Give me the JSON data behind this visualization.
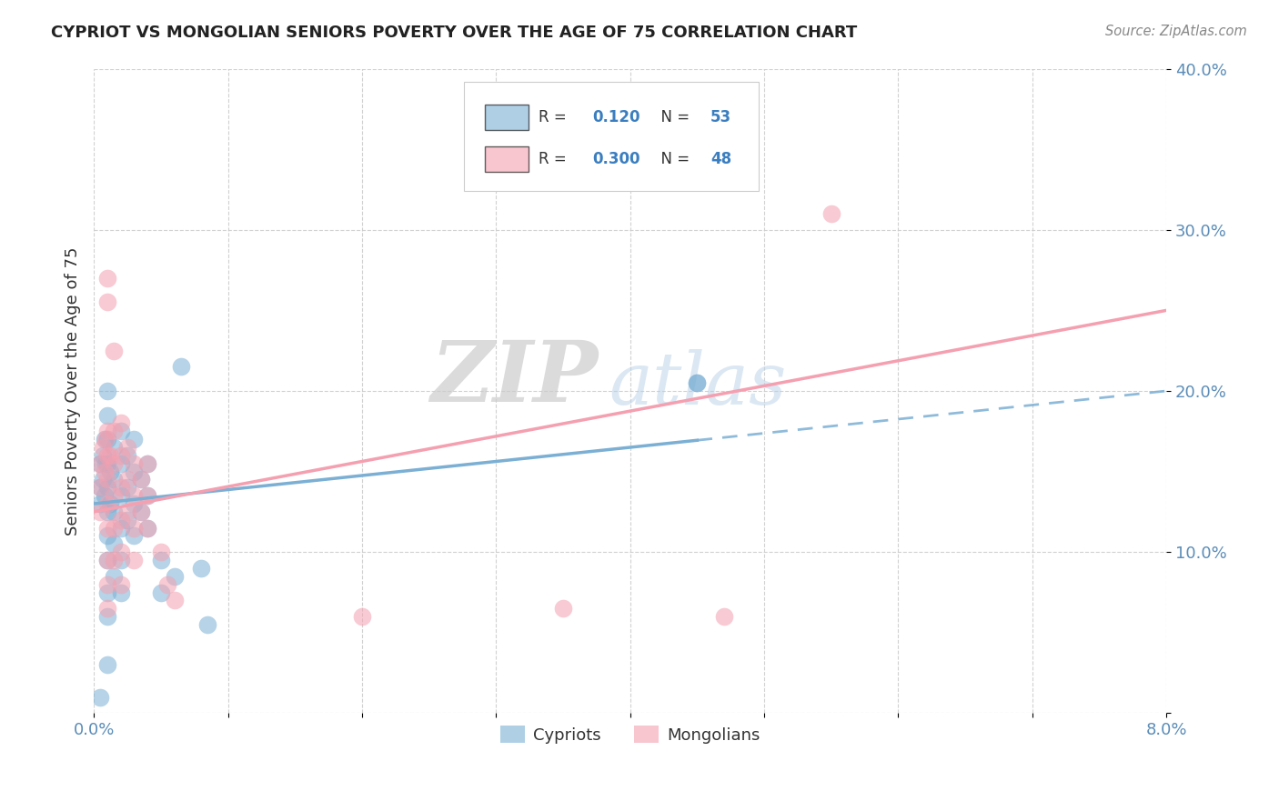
{
  "title": "CYPRIOT VS MONGOLIAN SENIORS POVERTY OVER THE AGE OF 75 CORRELATION CHART",
  "source_text": "Source: ZipAtlas.com",
  "ylabel": "Seniors Poverty Over the Age of 75",
  "xlim": [
    0.0,
    0.08
  ],
  "ylim": [
    0.0,
    0.4
  ],
  "xticks": [
    0.0,
    0.01,
    0.02,
    0.03,
    0.04,
    0.05,
    0.06,
    0.07,
    0.08
  ],
  "xticklabels": [
    "0.0%",
    "",
    "",
    "",
    "",
    "",
    "",
    "",
    "8.0%"
  ],
  "yticks": [
    0.0,
    0.1,
    0.2,
    0.3,
    0.4
  ],
  "yticklabels": [
    "",
    "10.0%",
    "20.0%",
    "30.0%",
    "40.0%"
  ],
  "cypriot_color": "#7BAFD4",
  "mongolian_color": "#F4A0B0",
  "cypriot_R": 0.12,
  "cypriot_N": 53,
  "mongolian_R": 0.3,
  "mongolian_N": 48,
  "background_color": "#FFFFFF",
  "grid_color": "#CCCCCC",
  "watermark_zip": "ZIP",
  "watermark_atlas": "atlas",
  "legend_label_cypriot": "Cypriots",
  "legend_label_mongolian": "Mongolians",
  "trend_cy_x0": 0.0,
  "trend_cy_y0": 0.13,
  "trend_cy_x1": 0.08,
  "trend_cy_y1": 0.2,
  "trend_cy_solid_end": 0.045,
  "trend_mo_x0": 0.0,
  "trend_mo_y0": 0.125,
  "trend_mo_x1": 0.08,
  "trend_mo_y1": 0.25,
  "cypriot_scatter": [
    [
      0.0005,
      0.155
    ],
    [
      0.0005,
      0.14
    ],
    [
      0.0005,
      0.13
    ],
    [
      0.0007,
      0.16
    ],
    [
      0.0007,
      0.145
    ],
    [
      0.0008,
      0.17
    ],
    [
      0.0008,
      0.135
    ],
    [
      0.0009,
      0.155
    ],
    [
      0.001,
      0.2
    ],
    [
      0.001,
      0.185
    ],
    [
      0.001,
      0.17
    ],
    [
      0.001,
      0.155
    ],
    [
      0.001,
      0.14
    ],
    [
      0.001,
      0.125
    ],
    [
      0.001,
      0.11
    ],
    [
      0.001,
      0.095
    ],
    [
      0.001,
      0.075
    ],
    [
      0.001,
      0.06
    ],
    [
      0.0012,
      0.15
    ],
    [
      0.0012,
      0.13
    ],
    [
      0.0015,
      0.165
    ],
    [
      0.0015,
      0.145
    ],
    [
      0.0015,
      0.125
    ],
    [
      0.0015,
      0.105
    ],
    [
      0.0015,
      0.085
    ],
    [
      0.002,
      0.175
    ],
    [
      0.002,
      0.155
    ],
    [
      0.002,
      0.135
    ],
    [
      0.002,
      0.115
    ],
    [
      0.002,
      0.095
    ],
    [
      0.002,
      0.075
    ],
    [
      0.0025,
      0.16
    ],
    [
      0.0025,
      0.14
    ],
    [
      0.0025,
      0.12
    ],
    [
      0.003,
      0.17
    ],
    [
      0.003,
      0.15
    ],
    [
      0.003,
      0.13
    ],
    [
      0.003,
      0.11
    ],
    [
      0.0035,
      0.145
    ],
    [
      0.0035,
      0.125
    ],
    [
      0.004,
      0.155
    ],
    [
      0.004,
      0.135
    ],
    [
      0.004,
      0.115
    ],
    [
      0.005,
      0.095
    ],
    [
      0.005,
      0.075
    ],
    [
      0.006,
      0.085
    ],
    [
      0.0065,
      0.215
    ],
    [
      0.008,
      0.09
    ],
    [
      0.0085,
      0.055
    ],
    [
      0.001,
      0.03
    ],
    [
      0.0005,
      0.01
    ],
    [
      0.045,
      0.205
    ],
    [
      0.045,
      0.205
    ]
  ],
  "mongolian_scatter": [
    [
      0.0005,
      0.155
    ],
    [
      0.0005,
      0.14
    ],
    [
      0.0005,
      0.125
    ],
    [
      0.0007,
      0.165
    ],
    [
      0.0008,
      0.15
    ],
    [
      0.0009,
      0.17
    ],
    [
      0.001,
      0.27
    ],
    [
      0.001,
      0.255
    ],
    [
      0.001,
      0.175
    ],
    [
      0.001,
      0.16
    ],
    [
      0.001,
      0.145
    ],
    [
      0.001,
      0.13
    ],
    [
      0.001,
      0.115
    ],
    [
      0.001,
      0.095
    ],
    [
      0.001,
      0.08
    ],
    [
      0.001,
      0.065
    ],
    [
      0.0012,
      0.16
    ],
    [
      0.0015,
      0.225
    ],
    [
      0.0015,
      0.175
    ],
    [
      0.0015,
      0.155
    ],
    [
      0.0015,
      0.135
    ],
    [
      0.0015,
      0.115
    ],
    [
      0.0015,
      0.095
    ],
    [
      0.002,
      0.18
    ],
    [
      0.002,
      0.16
    ],
    [
      0.002,
      0.14
    ],
    [
      0.002,
      0.12
    ],
    [
      0.002,
      0.1
    ],
    [
      0.002,
      0.08
    ],
    [
      0.0025,
      0.165
    ],
    [
      0.0025,
      0.145
    ],
    [
      0.0025,
      0.125
    ],
    [
      0.003,
      0.155
    ],
    [
      0.003,
      0.135
    ],
    [
      0.003,
      0.115
    ],
    [
      0.003,
      0.095
    ],
    [
      0.0035,
      0.145
    ],
    [
      0.0035,
      0.125
    ],
    [
      0.004,
      0.155
    ],
    [
      0.004,
      0.135
    ],
    [
      0.004,
      0.115
    ],
    [
      0.005,
      0.1
    ],
    [
      0.0055,
      0.08
    ],
    [
      0.006,
      0.07
    ],
    [
      0.02,
      0.06
    ],
    [
      0.035,
      0.065
    ],
    [
      0.047,
      0.06
    ],
    [
      0.055,
      0.31
    ]
  ]
}
